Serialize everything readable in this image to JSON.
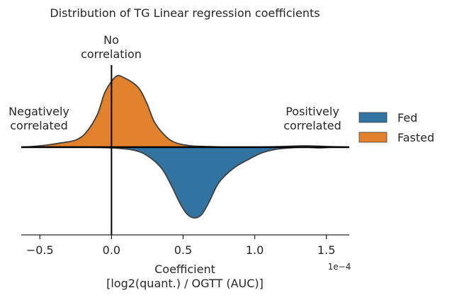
{
  "chart_data": {
    "type": "area",
    "title": "Distribution of TG Linear regression coefficients",
    "xlabel_line1": "Coefficient",
    "xlabel_line2": "[log2(quant.) / OGTT (AUC)]",
    "x_offset_text": "1e−4",
    "xlim": [
      -0.63,
      1.66
    ],
    "x_ticks": [
      -0.5,
      0.0,
      0.5,
      1.0,
      1.5
    ],
    "x_tick_labels": [
      "−0.5",
      "0.0",
      "0.5",
      "1.0",
      "1.5"
    ],
    "annotations": {
      "no_corr_line1": "No",
      "no_corr_line2": "correlation",
      "neg_line1": "Negatively",
      "neg_line2": "correlated",
      "pos_line1": "Positively",
      "pos_line2": "correlated"
    },
    "legend": {
      "placement": "right"
    },
    "series": [
      {
        "name": "Fed",
        "color": "#3274a1",
        "direction": "down",
        "x": [
          -0.63,
          -0.2,
          0.0,
          0.15,
          0.25,
          0.35,
          0.42,
          0.48,
          0.53,
          0.58,
          0.63,
          0.68,
          0.75,
          0.85,
          0.95,
          1.05,
          1.15,
          1.25,
          1.35,
          1.45,
          1.55,
          1.66
        ],
        "density": [
          0.0,
          0.0,
          0.01,
          0.04,
          0.12,
          0.3,
          0.55,
          0.8,
          0.95,
          1.0,
          0.95,
          0.78,
          0.5,
          0.3,
          0.18,
          0.08,
          0.03,
          0.01,
          0.0,
          0.01,
          0.0,
          0.0
        ]
      },
      {
        "name": "Fasted",
        "color": "#e1812c",
        "direction": "up",
        "x": [
          -0.63,
          -0.55,
          -0.45,
          -0.35,
          -0.25,
          -0.18,
          -0.1,
          -0.05,
          0.0,
          0.04,
          0.08,
          0.15,
          0.2,
          0.25,
          0.3,
          0.38,
          0.45,
          0.55,
          0.65,
          0.8,
          1.0,
          1.2,
          1.35,
          1.5,
          1.66
        ],
        "density": [
          0.0,
          0.01,
          0.03,
          0.06,
          0.1,
          0.2,
          0.45,
          0.75,
          0.92,
          1.0,
          0.98,
          0.9,
          0.8,
          0.6,
          0.35,
          0.15,
          0.06,
          0.02,
          0.01,
          0.0,
          0.0,
          0.01,
          0.02,
          0.01,
          0.0
        ]
      }
    ]
  }
}
